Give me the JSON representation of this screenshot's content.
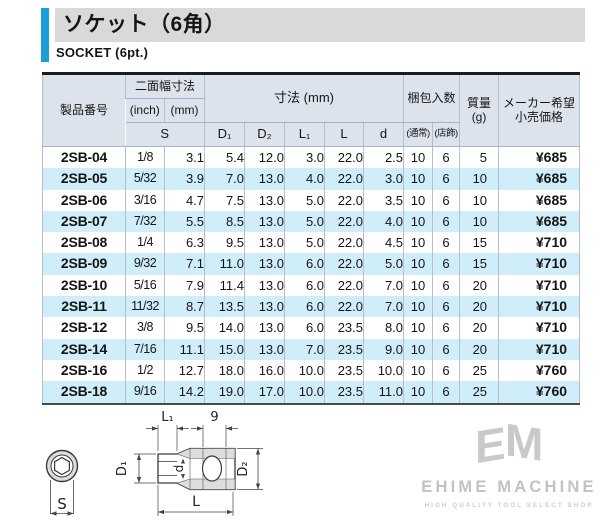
{
  "page": {
    "title_jp": "ソケット（6角）",
    "title_en": "SOCKET (6pt.)"
  },
  "colors": {
    "accent_blue": "#1a9fd9",
    "title_bg": "#d9d9d9",
    "header_bg": "#dde3ed",
    "row_highlight": "#cfeef9"
  },
  "table": {
    "header": {
      "product": "製品番号",
      "width_across_flats": "二面幅寸法",
      "inch": "(inch)",
      "mm": "(mm)",
      "s": "S",
      "dims": "寸法 (mm)",
      "d1": "D₁",
      "d2": "D₂",
      "l1": "L₁",
      "l": "L",
      "d": "d",
      "packing": "梱包入数",
      "pack_normal": "(通常)",
      "pack_display": "(店飾)",
      "mass": "質量",
      "mass_unit": "(g)",
      "price_line1": "メーカー希望",
      "price_line2": "小売価格"
    },
    "rows": [
      {
        "product": "2SB-04",
        "inch": "1/8",
        "mm": "3.1",
        "d1": "5.4",
        "d2": "12.0",
        "l1": "3.0",
        "l": "22.0",
        "d": "2.5",
        "pack_normal": "10",
        "pack_display": "6",
        "mass": "5",
        "price": "¥685",
        "highlight": false
      },
      {
        "product": "2SB-05",
        "inch": "5/32",
        "mm": "3.9",
        "d1": "7.0",
        "d2": "13.0",
        "l1": "4.0",
        "l": "22.0",
        "d": "3.0",
        "pack_normal": "10",
        "pack_display": "6",
        "mass": "10",
        "price": "¥685",
        "highlight": true
      },
      {
        "product": "2SB-06",
        "inch": "3/16",
        "mm": "4.7",
        "d1": "7.5",
        "d2": "13.0",
        "l1": "5.0",
        "l": "22.0",
        "d": "3.5",
        "pack_normal": "10",
        "pack_display": "6",
        "mass": "10",
        "price": "¥685",
        "highlight": false
      },
      {
        "product": "2SB-07",
        "inch": "7/32",
        "mm": "5.5",
        "d1": "8.5",
        "d2": "13.0",
        "l1": "5.0",
        "l": "22.0",
        "d": "4.0",
        "pack_normal": "10",
        "pack_display": "6",
        "mass": "10",
        "price": "¥685",
        "highlight": true
      },
      {
        "product": "2SB-08",
        "inch": "1/4",
        "mm": "6.3",
        "d1": "9.5",
        "d2": "13.0",
        "l1": "5.0",
        "l": "22.0",
        "d": "4.5",
        "pack_normal": "10",
        "pack_display": "6",
        "mass": "15",
        "price": "¥710",
        "highlight": false
      },
      {
        "product": "2SB-09",
        "inch": "9/32",
        "mm": "7.1",
        "d1": "11.0",
        "d2": "13.0",
        "l1": "6.0",
        "l": "22.0",
        "d": "5.0",
        "pack_normal": "10",
        "pack_display": "6",
        "mass": "15",
        "price": "¥710",
        "highlight": true
      },
      {
        "product": "2SB-10",
        "inch": "5/16",
        "mm": "7.9",
        "d1": "11.4",
        "d2": "13.0",
        "l1": "6.0",
        "l": "22.0",
        "d": "7.0",
        "pack_normal": "10",
        "pack_display": "6",
        "mass": "20",
        "price": "¥710",
        "highlight": false
      },
      {
        "product": "2SB-11",
        "inch": "11/32",
        "mm": "8.7",
        "d1": "13.5",
        "d2": "13.0",
        "l1": "6.0",
        "l": "22.0",
        "d": "7.0",
        "pack_normal": "10",
        "pack_display": "6",
        "mass": "20",
        "price": "¥710",
        "highlight": true
      },
      {
        "product": "2SB-12",
        "inch": "3/8",
        "mm": "9.5",
        "d1": "14.0",
        "d2": "13.0",
        "l1": "6.0",
        "l": "23.5",
        "d": "8.0",
        "pack_normal": "10",
        "pack_display": "6",
        "mass": "20",
        "price": "¥710",
        "highlight": false
      },
      {
        "product": "2SB-14",
        "inch": "7/16",
        "mm": "11.1",
        "d1": "15.0",
        "d2": "13.0",
        "l1": "7.0",
        "l": "23.5",
        "d": "9.0",
        "pack_normal": "10",
        "pack_display": "6",
        "mass": "20",
        "price": "¥710",
        "highlight": true
      },
      {
        "product": "2SB-16",
        "inch": "1/2",
        "mm": "12.7",
        "d1": "18.0",
        "d2": "16.0",
        "l1": "10.0",
        "l": "23.5",
        "d": "10.0",
        "pack_normal": "10",
        "pack_display": "6",
        "mass": "25",
        "price": "¥760",
        "highlight": false
      },
      {
        "product": "2SB-18",
        "inch": "9/16",
        "mm": "14.2",
        "d1": "19.0",
        "d2": "17.0",
        "l1": "10.0",
        "l": "23.5",
        "d": "11.0",
        "pack_normal": "10",
        "pack_display": "6",
        "mass": "25",
        "price": "¥760",
        "highlight": true
      }
    ]
  },
  "diagram": {
    "labels": {
      "s": "S",
      "l1": "L₁",
      "groove": "9",
      "d1": "D₁",
      "d": "d",
      "d2": "D₂",
      "l": "L"
    }
  },
  "logo": {
    "mark_e": "E",
    "mark_m": "M",
    "name": "EHIME MACHINE",
    "tagline": "HIGH QUALITY TOOL SELECT SHOP"
  }
}
